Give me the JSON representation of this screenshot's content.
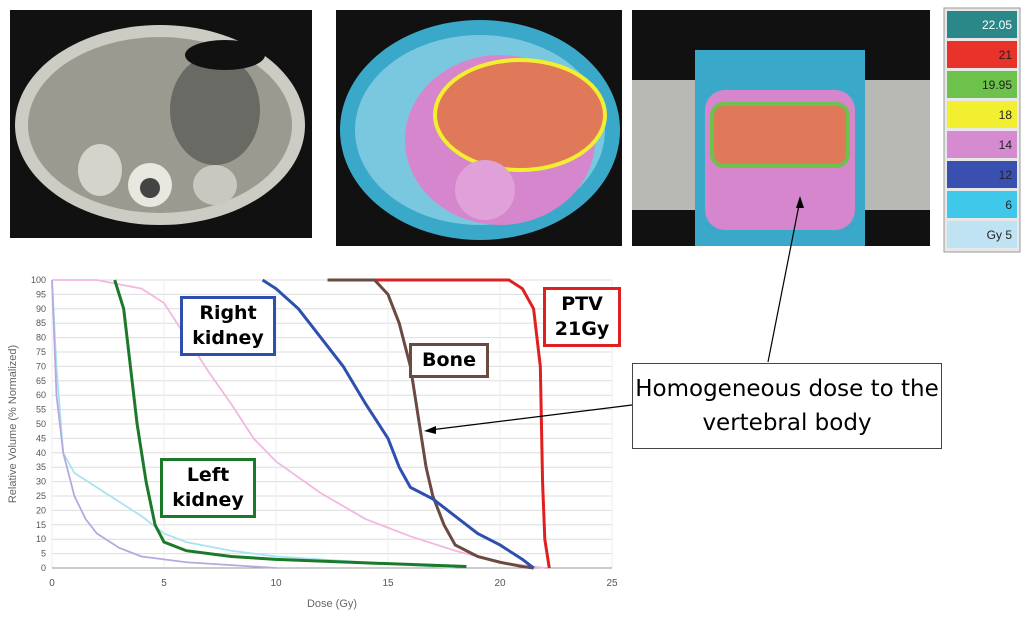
{
  "chart_data": {
    "type": "line",
    "x_label": "Dose (Gy)",
    "y_label": "Relative Volume (% Normalized)",
    "xlim": [
      0,
      25
    ],
    "xticks": [
      0,
      5,
      10,
      15,
      20,
      25
    ],
    "ylim": [
      0,
      100
    ],
    "yticks": [
      0,
      5,
      10,
      15,
      20,
      25,
      30,
      35,
      40,
      45,
      50,
      55,
      60,
      65,
      70,
      75,
      80,
      85,
      90,
      95,
      100
    ],
    "grid": true,
    "series": [
      {
        "name": "PTV 21Gy",
        "color": "#e02020",
        "x": [
          14.4,
          20.4,
          21,
          21.5,
          21.8,
          21.9,
          22,
          22.2
        ],
        "values": [
          100,
          100,
          97,
          90,
          70,
          30,
          10,
          0
        ]
      },
      {
        "name": "Bone",
        "color": "#6b4a42",
        "x": [
          12.3,
          14.4,
          15,
          15.5,
          16,
          16.3,
          16.5,
          16.7,
          17,
          17.5,
          18,
          19,
          20,
          21,
          21.5
        ],
        "values": [
          100,
          100,
          95,
          85,
          70,
          55,
          45,
          35,
          25,
          15,
          8,
          4,
          2,
          0.5,
          0
        ]
      },
      {
        "name": "Right kidney",
        "color": "#2e4fb0",
        "x": [
          9.4,
          10,
          11,
          12,
          13,
          14,
          15,
          15.5,
          16,
          17,
          18,
          19,
          20,
          21,
          21.5
        ],
        "values": [
          100,
          97,
          90,
          80,
          70,
          57,
          45,
          35,
          28,
          24,
          18,
          12,
          8,
          3,
          0
        ]
      },
      {
        "name": "Left kidney",
        "color": "#1a7a2a",
        "x": [
          2.8,
          3.2,
          3.5,
          3.8,
          4.2,
          4.6,
          5,
          6,
          8,
          10,
          15,
          18.5
        ],
        "values": [
          100,
          90,
          70,
          50,
          30,
          15,
          9,
          6,
          4,
          3,
          1.5,
          0.5
        ]
      },
      {
        "color": "#f2b8e0",
        "x": [
          0,
          2,
          4,
          5,
          6,
          7,
          8,
          9,
          10,
          12,
          14,
          16,
          18,
          20,
          22
        ],
        "values": [
          100,
          100,
          97,
          92,
          80,
          68,
          57,
          45,
          37,
          26,
          17,
          11,
          6,
          2,
          0
        ]
      },
      {
        "color": "#a8e4ee",
        "x": [
          0,
          0.2,
          0.5,
          1,
          2,
          3,
          4,
          5,
          6,
          8,
          10,
          12,
          14,
          16,
          18
        ],
        "values": [
          100,
          70,
          40,
          33,
          28,
          23,
          18,
          12,
          9,
          6,
          4,
          3,
          2,
          1,
          0
        ]
      },
      {
        "color": "#b8a8e0",
        "x": [
          0,
          0.2,
          0.5,
          1,
          1.5,
          2,
          3,
          4,
          6,
          8,
          10
        ],
        "values": [
          100,
          60,
          40,
          25,
          17,
          12,
          7,
          4,
          2,
          1,
          0
        ]
      }
    ]
  },
  "annotation": "Homogeneous dose to the vertebral body",
  "dose_scale": [
    {
      "label": "22.05",
      "color": "#2a8888"
    },
    {
      "label": "21",
      "color": "#e8322a"
    },
    {
      "label": "19.95",
      "color": "#6cc24a"
    },
    {
      "label": "18",
      "color": "#f2ee30"
    },
    {
      "label": "14",
      "color": "#d68ad0"
    },
    {
      "label": "12",
      "color": "#3a50b0"
    },
    {
      "label": "6",
      "color": "#40c8ea"
    },
    {
      "label": "Gy 5",
      "color": "#bfe3f2"
    }
  ]
}
